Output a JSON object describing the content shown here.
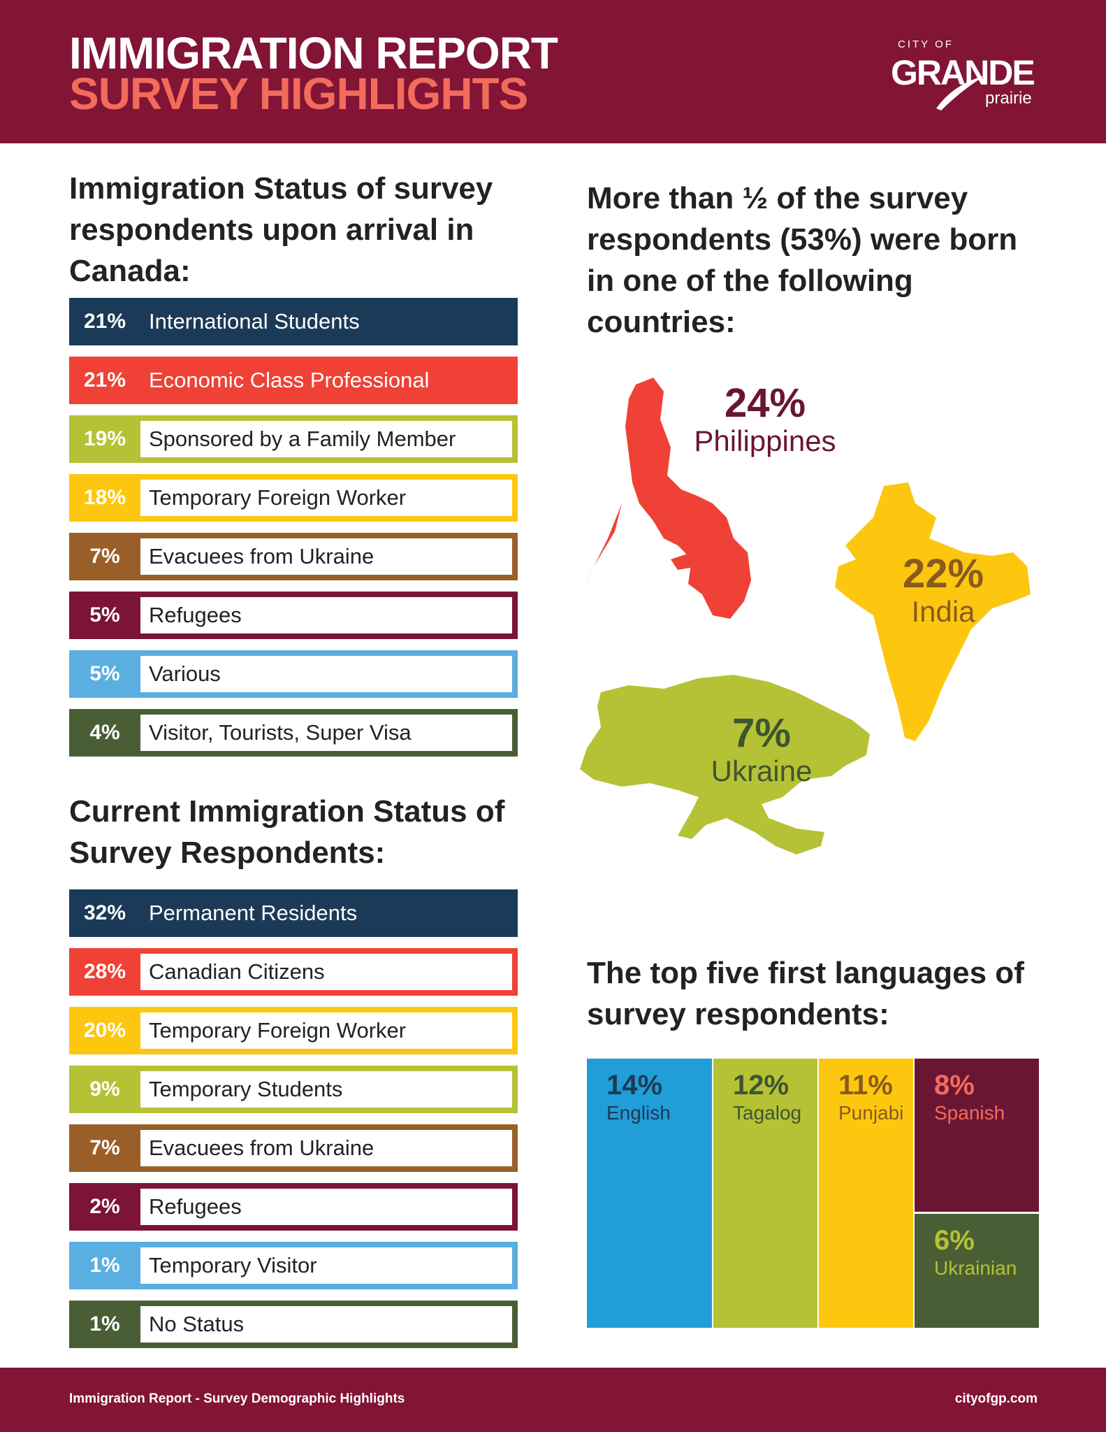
{
  "header": {
    "title_line1": "IMMIGRATION REPORT",
    "title_line2": "SURVEY HIGHLIGHTS",
    "logo": {
      "city_of": "CITY OF",
      "grande": "GRANDE",
      "prairie": "prairie"
    }
  },
  "colors": {
    "maroon": "#821436",
    "salmon": "#f26b5b"
  },
  "arrival": {
    "heading": "Immigration Status of survey respondents upon arrival in Canada:",
    "items": [
      {
        "pct": "21%",
        "label": "International Students",
        "color": "#1b3a57",
        "filled": true
      },
      {
        "pct": "21%",
        "label": "Economic Class Professional",
        "color": "#ef4136",
        "filled": true
      },
      {
        "pct": "19%",
        "label": "Sponsored by a Family Member",
        "color": "#b5c236",
        "filled": false
      },
      {
        "pct": "18%",
        "label": "Temporary Foreign Worker",
        "color": "#fdc70f",
        "filled": false
      },
      {
        "pct": "7%",
        "label": "Evacuees from Ukraine",
        "color": "#9a5f28",
        "filled": false
      },
      {
        "pct": "5%",
        "label": "Refugees",
        "color": "#7b1438",
        "filled": false
      },
      {
        "pct": "5%",
        "label": "Various",
        "color": "#5aaee0",
        "filled": false
      },
      {
        "pct": "4%",
        "label": "Visitor, Tourists, Super Visa",
        "color": "#4a5e35",
        "filled": false
      }
    ]
  },
  "current": {
    "heading": "Current Immigration Status of Survey Respondents:",
    "items": [
      {
        "pct": "32%",
        "label": "Permanent Residents",
        "color": "#1b3a57",
        "filled": true
      },
      {
        "pct": "28%",
        "label": "Canadian Citizens",
        "color": "#ef4136",
        "filled": false
      },
      {
        "pct": "20%",
        "label": "Temporary Foreign Worker",
        "color": "#fdc70f",
        "filled": false
      },
      {
        "pct": "9%",
        "label": "Temporary Students",
        "color": "#b5c236",
        "filled": false
      },
      {
        "pct": "7%",
        "label": "Evacuees from Ukraine",
        "color": "#9a5f28",
        "filled": false
      },
      {
        "pct": "2%",
        "label": "Refugees",
        "color": "#7b1438",
        "filled": false
      },
      {
        "pct": "1%",
        "label": "Temporary Visitor",
        "color": "#5aaee0",
        "filled": false
      },
      {
        "pct": "1%",
        "label": "No Status",
        "color": "#4a5e35",
        "filled": false
      }
    ]
  },
  "countries": {
    "heading": "More than ½ of the survey respondents (53%) were born in one of the following countries:",
    "items": [
      {
        "pct": "24%",
        "name": "Philippines",
        "map_color": "#ef4136",
        "text_color": "#6b1535"
      },
      {
        "pct": "22%",
        "name": "India",
        "map_color": "#fdc70f",
        "text_color": "#8a5a1f"
      },
      {
        "pct": "7%",
        "name": "Ukraine",
        "map_color": "#b5c236",
        "text_color": "#3f5530"
      }
    ]
  },
  "languages": {
    "heading": "The top five first languages of survey respondents:",
    "items": [
      {
        "pct": "14%",
        "name": "English",
        "bg": "#219dd8",
        "fg": "#1b3a57"
      },
      {
        "pct": "12%",
        "name": "Tagalog",
        "bg": "#b5c236",
        "fg": "#3f5530"
      },
      {
        "pct": "11%",
        "name": "Punjabi",
        "bg": "#fdc70f",
        "fg": "#8a5a1f"
      },
      {
        "pct": "8%",
        "name": "Spanish",
        "bg": "#6b1535",
        "fg": "#f26b5b"
      },
      {
        "pct": "6%",
        "name": "Ukrainian",
        "bg": "#4a5e35",
        "fg": "#b5c236"
      }
    ]
  },
  "footer": {
    "left": "Immigration Report - Survey Demographic Highlights",
    "right": "cityofgp.com"
  }
}
